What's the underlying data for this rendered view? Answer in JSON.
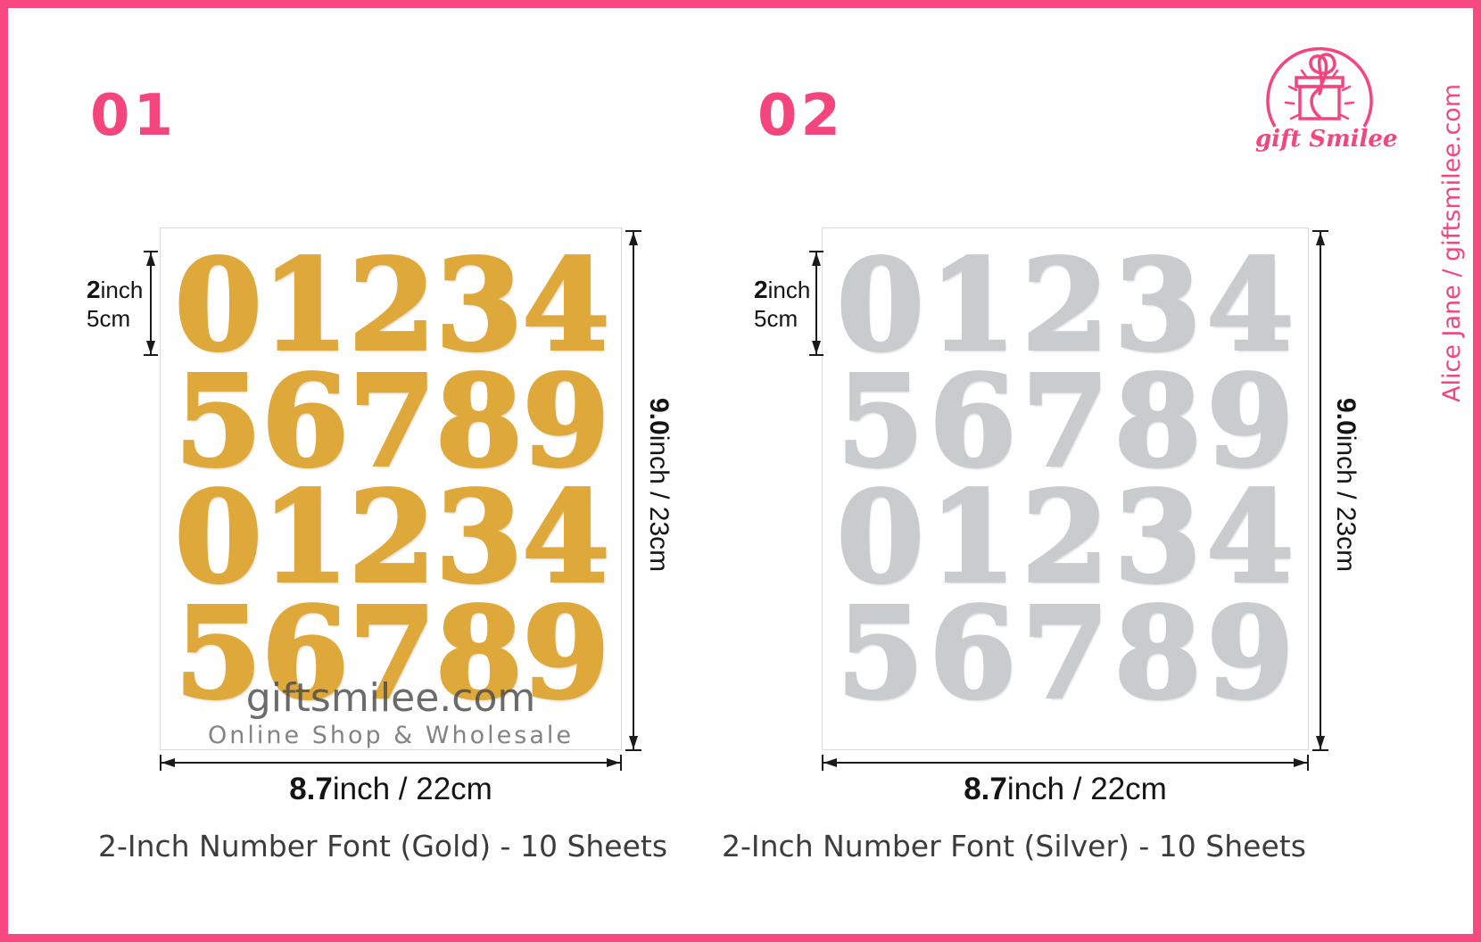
{
  "branding": {
    "logo_text": "gift Smilee",
    "credit_vertical": "Alice Jane / giftsmilee.com",
    "pink": "#F4457C"
  },
  "watermark": {
    "line1": "giftsmilee.com",
    "line2": "Online Shop & Wholesale"
  },
  "products": [
    {
      "index_label": "01",
      "caption": "2-Inch Number Font (Gold) - 10 Sheets",
      "color_name": "gold",
      "digit_color": "#DFA83A",
      "rows": [
        "01234",
        "56789",
        "01234",
        "56789"
      ],
      "dimensions": {
        "glyph_height_value": "2",
        "glyph_height_unit": "inch",
        "glyph_height_metric": "5cm",
        "sheet_height_value": "9.0",
        "sheet_height_rest": "inch / 23cm",
        "sheet_width_value": "8.7",
        "sheet_width_rest": "inch / 22cm"
      }
    },
    {
      "index_label": "02",
      "caption": "2-Inch Number Font (Silver) - 10 Sheets",
      "color_name": "silver",
      "digit_color": "#C9CCCE",
      "rows": [
        "01234",
        "56789",
        "01234",
        "56789"
      ],
      "dimensions": {
        "glyph_height_value": "2",
        "glyph_height_unit": "inch",
        "glyph_height_metric": "5cm",
        "sheet_height_value": "9.0",
        "sheet_height_rest": "inch / 23cm",
        "sheet_width_value": "8.7",
        "sheet_width_rest": "inch / 22cm"
      }
    }
  ]
}
